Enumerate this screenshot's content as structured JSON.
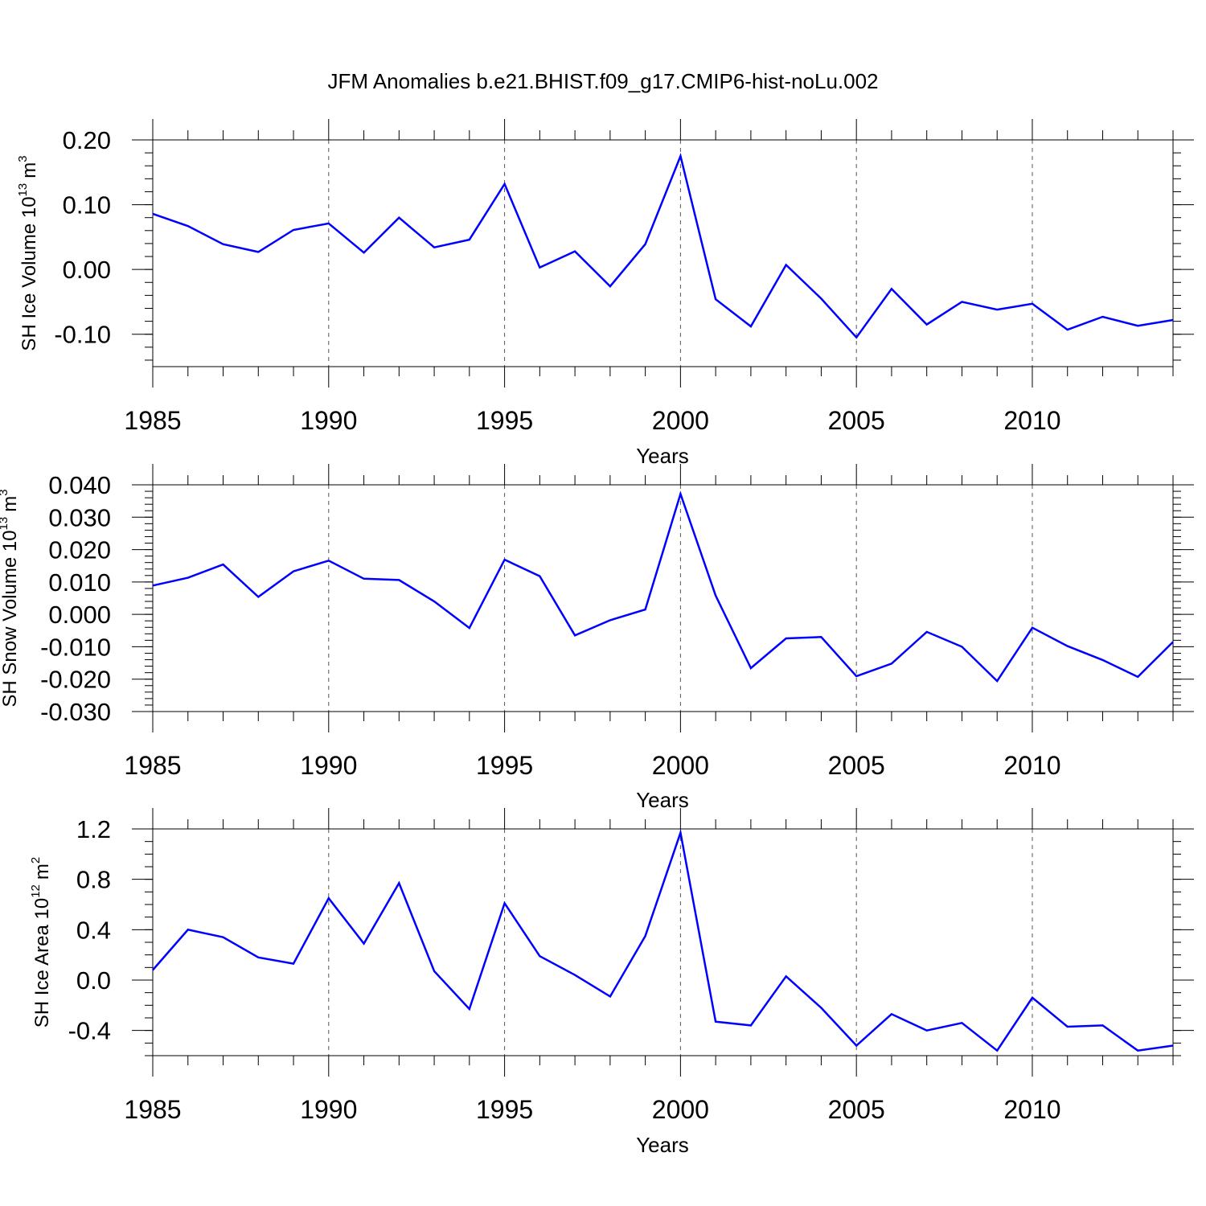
{
  "title": "JFM Anomalies b.e21.BHIST.f09_g17.CMIP6-hist-noLu.002",
  "line_color": "#0000ff",
  "chart_data": [
    {
      "type": "line",
      "ylabel": "SH Ice Volume 10",
      "ylabel_exp": "13",
      "ylabel_unit": "m",
      "ylabel_unit_exp": "3",
      "xlabel": "Years",
      "xlim": [
        1985,
        2014
      ],
      "ylim": [
        -0.15,
        0.2
      ],
      "x_ticks": [
        1985,
        1990,
        1995,
        2000,
        2005,
        2010
      ],
      "x_tick_labels": [
        "1985",
        "1990",
        "1995",
        "2000",
        "2005",
        "2010"
      ],
      "y_ticks": [
        0.2,
        0.1,
        0.0,
        -0.1
      ],
      "y_tick_labels": [
        "0.20",
        "0.10",
        "0.00",
        "-0.10"
      ],
      "y_minor_step": 0.02,
      "grid": "dashed vertical at major x ticks",
      "x": [
        1985,
        1986,
        1987,
        1988,
        1989,
        1990,
        1991,
        1992,
        1993,
        1994,
        1995,
        1996,
        1997,
        1998,
        1999,
        2000,
        2001,
        2002,
        2003,
        2004,
        2005,
        2006,
        2007,
        2008,
        2009,
        2010,
        2011,
        2012,
        2013,
        2014
      ],
      "values": [
        0.086,
        0.067,
        0.039,
        0.027,
        0.061,
        0.071,
        0.026,
        0.08,
        0.034,
        0.046,
        0.132,
        0.003,
        0.028,
        -0.026,
        0.039,
        0.175,
        -0.046,
        -0.088,
        0.007,
        -0.045,
        -0.105,
        -0.03,
        -0.085,
        -0.05,
        -0.062,
        -0.053,
        -0.093,
        -0.073,
        -0.087,
        -0.078
      ]
    },
    {
      "type": "line",
      "ylabel": "SH Snow Volume 10",
      "ylabel_exp": "13",
      "ylabel_unit": "m",
      "ylabel_unit_exp": "3",
      "xlabel": "Years",
      "xlim": [
        1985,
        2014
      ],
      "ylim": [
        -0.03,
        0.04
      ],
      "x_ticks": [
        1985,
        1990,
        1995,
        2000,
        2005,
        2010
      ],
      "x_tick_labels": [
        "1985",
        "1990",
        "1995",
        "2000",
        "2005",
        "2010"
      ],
      "y_ticks": [
        0.04,
        0.03,
        0.02,
        0.01,
        0.0,
        -0.01,
        -0.02,
        -0.03
      ],
      "y_tick_labels": [
        "0.040",
        "0.030",
        "0.020",
        "0.010",
        "0.000",
        "-0.010",
        "-0.020",
        "-0.030"
      ],
      "y_minor_step": 0.002,
      "grid": "dashed vertical at major x ticks",
      "x": [
        1985,
        1986,
        1987,
        1988,
        1989,
        1990,
        1991,
        1992,
        1993,
        1994,
        1995,
        1996,
        1997,
        1998,
        1999,
        2000,
        2001,
        2002,
        2003,
        2004,
        2005,
        2006,
        2007,
        2008,
        2009,
        2010,
        2011,
        2012,
        2013,
        2014
      ],
      "values": [
        0.0089,
        0.0113,
        0.0154,
        0.0054,
        0.0133,
        0.0166,
        0.011,
        0.0106,
        0.004,
        -0.0042,
        0.0169,
        0.0118,
        -0.0065,
        -0.0018,
        0.0015,
        0.0372,
        0.0058,
        -0.0166,
        -0.0074,
        -0.007,
        -0.0191,
        -0.0152,
        -0.0054,
        -0.01,
        -0.0206,
        -0.0041,
        -0.0098,
        -0.0141,
        -0.0193,
        -0.0085
      ]
    },
    {
      "type": "line",
      "ylabel": "SH Ice Area 10",
      "ylabel_exp": "12",
      "ylabel_unit": "m",
      "ylabel_unit_exp": "2",
      "xlabel": "Years",
      "xlim": [
        1985,
        2014
      ],
      "ylim": [
        -0.6,
        1.2
      ],
      "x_ticks": [
        1985,
        1990,
        1995,
        2000,
        2005,
        2010
      ],
      "x_tick_labels": [
        "1985",
        "1990",
        "1995",
        "2000",
        "2005",
        "2010"
      ],
      "y_ticks": [
        1.2,
        0.8,
        0.4,
        0.0,
        -0.4
      ],
      "y_tick_labels": [
        "1.2",
        "0.8",
        "0.4",
        "0.0",
        "-0.4"
      ],
      "y_minor_step": 0.1,
      "grid": "dashed vertical at major x ticks",
      "x": [
        1985,
        1986,
        1987,
        1988,
        1989,
        1990,
        1991,
        1992,
        1993,
        1994,
        1995,
        1996,
        1997,
        1998,
        1999,
        2000,
        2001,
        2002,
        2003,
        2004,
        2005,
        2006,
        2007,
        2008,
        2009,
        2010,
        2011,
        2012,
        2013,
        2014
      ],
      "values": [
        0.08,
        0.4,
        0.34,
        0.18,
        0.13,
        0.65,
        0.29,
        0.77,
        0.07,
        -0.23,
        0.61,
        0.19,
        0.04,
        -0.13,
        0.35,
        1.17,
        -0.33,
        -0.36,
        0.03,
        -0.22,
        -0.52,
        -0.27,
        -0.4,
        -0.34,
        -0.56,
        -0.14,
        -0.37,
        -0.36,
        -0.56,
        -0.52
      ]
    }
  ]
}
